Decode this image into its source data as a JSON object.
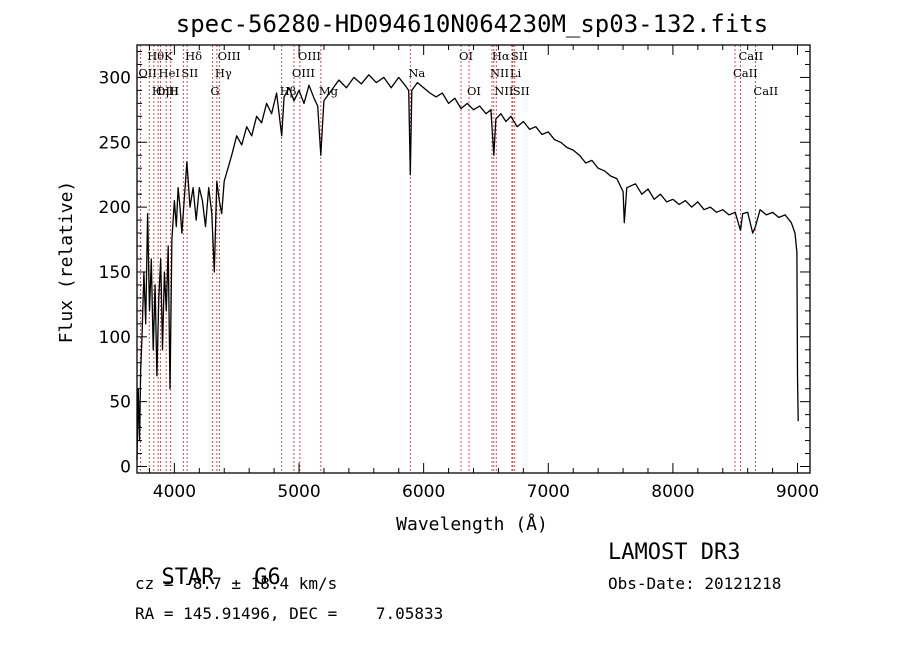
{
  "chart_data": {
    "type": "line",
    "title": "spec-56280-HD094610N064230M_sp03-132.fits",
    "xlabel": "Wavelength (Å)",
    "ylabel": "Flux (relative)",
    "xlim": [
      3700,
      9100
    ],
    "ylim": [
      -5,
      325
    ],
    "xticks": [
      4000,
      5000,
      6000,
      7000,
      8000,
      9000
    ],
    "yticks": [
      0,
      50,
      100,
      150,
      200,
      250,
      300
    ],
    "series": [
      {
        "name": "flux",
        "points": [
          [
            3700,
            5
          ],
          [
            3710,
            60
          ],
          [
            3720,
            20
          ],
          [
            3730,
            75
          ],
          [
            3740,
            100
          ],
          [
            3755,
            150
          ],
          [
            3770,
            110
          ],
          [
            3785,
            195
          ],
          [
            3800,
            120
          ],
          [
            3815,
            160
          ],
          [
            3830,
            90
          ],
          [
            3845,
            140
          ],
          [
            3860,
            70
          ],
          [
            3875,
            130
          ],
          [
            3890,
            160
          ],
          [
            3905,
            90
          ],
          [
            3920,
            150
          ],
          [
            3935,
            120
          ],
          [
            3950,
            170
          ],
          [
            3965,
            60
          ],
          [
            3980,
            175
          ],
          [
            4000,
            205
          ],
          [
            4015,
            185
          ],
          [
            4030,
            215
          ],
          [
            4045,
            200
          ],
          [
            4060,
            180
          ],
          [
            4075,
            200
          ],
          [
            4100,
            235
          ],
          [
            4125,
            200
          ],
          [
            4150,
            215
          ],
          [
            4175,
            190
          ],
          [
            4200,
            215
          ],
          [
            4225,
            205
          ],
          [
            4250,
            185
          ],
          [
            4275,
            215
          ],
          [
            4300,
            195
          ],
          [
            4320,
            150
          ],
          [
            4340,
            220
          ],
          [
            4360,
            205
          ],
          [
            4380,
            195
          ],
          [
            4400,
            220
          ],
          [
            4430,
            230
          ],
          [
            4460,
            240
          ],
          [
            4500,
            255
          ],
          [
            4540,
            248
          ],
          [
            4580,
            262
          ],
          [
            4620,
            255
          ],
          [
            4660,
            270
          ],
          [
            4700,
            265
          ],
          [
            4740,
            280
          ],
          [
            4780,
            272
          ],
          [
            4820,
            288
          ],
          [
            4861,
            255
          ],
          [
            4880,
            285
          ],
          [
            4920,
            292
          ],
          [
            4960,
            282
          ],
          [
            5000,
            290
          ],
          [
            5040,
            280
          ],
          [
            5080,
            294
          ],
          [
            5120,
            284
          ],
          [
            5150,
            278
          ],
          [
            5175,
            240
          ],
          [
            5200,
            282
          ],
          [
            5260,
            290
          ],
          [
            5320,
            298
          ],
          [
            5380,
            292
          ],
          [
            5440,
            300
          ],
          [
            5500,
            295
          ],
          [
            5560,
            302
          ],
          [
            5620,
            296
          ],
          [
            5680,
            300
          ],
          [
            5740,
            292
          ],
          [
            5800,
            300
          ],
          [
            5850,
            294
          ],
          [
            5880,
            290
          ],
          [
            5893,
            225
          ],
          [
            5905,
            290
          ],
          [
            5950,
            296
          ],
          [
            6000,
            292
          ],
          [
            6050,
            288
          ],
          [
            6100,
            285
          ],
          [
            6150,
            288
          ],
          [
            6200,
            280
          ],
          [
            6250,
            284
          ],
          [
            6300,
            276
          ],
          [
            6350,
            280
          ],
          [
            6400,
            275
          ],
          [
            6450,
            278
          ],
          [
            6500,
            272
          ],
          [
            6540,
            275
          ],
          [
            6563,
            240
          ],
          [
            6580,
            268
          ],
          [
            6620,
            272
          ],
          [
            6660,
            266
          ],
          [
            6700,
            270
          ],
          [
            6750,
            262
          ],
          [
            6800,
            266
          ],
          [
            6850,
            260
          ],
          [
            6900,
            262
          ],
          [
            6950,
            256
          ],
          [
            7000,
            258
          ],
          [
            7050,
            252
          ],
          [
            7100,
            250
          ],
          [
            7150,
            246
          ],
          [
            7200,
            244
          ],
          [
            7250,
            240
          ],
          [
            7300,
            234
          ],
          [
            7350,
            236
          ],
          [
            7400,
            230
          ],
          [
            7450,
            228
          ],
          [
            7500,
            224
          ],
          [
            7550,
            222
          ],
          [
            7600,
            212
          ],
          [
            7610,
            188
          ],
          [
            7630,
            215
          ],
          [
            7700,
            218
          ],
          [
            7750,
            210
          ],
          [
            7800,
            214
          ],
          [
            7850,
            206
          ],
          [
            7900,
            210
          ],
          [
            7950,
            204
          ],
          [
            8000,
            206
          ],
          [
            8050,
            202
          ],
          [
            8100,
            205
          ],
          [
            8150,
            200
          ],
          [
            8200,
            204
          ],
          [
            8250,
            198
          ],
          [
            8300,
            200
          ],
          [
            8350,
            196
          ],
          [
            8400,
            198
          ],
          [
            8450,
            194
          ],
          [
            8500,
            196
          ],
          [
            8542,
            182
          ],
          [
            8560,
            195
          ],
          [
            8600,
            196
          ],
          [
            8640,
            180
          ],
          [
            8662,
            185
          ],
          [
            8700,
            198
          ],
          [
            8750,
            194
          ],
          [
            8800,
            196
          ],
          [
            8850,
            192
          ],
          [
            8900,
            194
          ],
          [
            8950,
            188
          ],
          [
            8980,
            180
          ],
          [
            8995,
            165
          ],
          [
            9000,
            70
          ],
          [
            9005,
            35
          ]
        ]
      }
    ],
    "spectral_lines": [
      {
        "label": "Hθ",
        "wavelength": 3798,
        "row": 1
      },
      {
        "label": "OII",
        "wavelength": 3727,
        "row": 2
      },
      {
        "label": "OIII",
        "wavelength": 3869,
        "row": 3
      },
      {
        "label": "K",
        "wavelength": 3934,
        "row": 1
      },
      {
        "label": "HeI",
        "wavelength": 3889,
        "row": 2
      },
      {
        "label": "Hη",
        "wavelength": 3835,
        "row": 3
      },
      {
        "label": "SII",
        "wavelength": 4072,
        "row": 2
      },
      {
        "label": "H",
        "wavelength": 3970,
        "row": 3
      },
      {
        "label": "Hδ",
        "wavelength": 4102,
        "row": 1
      },
      {
        "label": "OIII",
        "wavelength": 4363,
        "row": 1
      },
      {
        "label": "Hγ",
        "wavelength": 4341,
        "row": 2
      },
      {
        "label": "G",
        "wavelength": 4305,
        "row": 3
      },
      {
        "label": "OIII",
        "wavelength": 5007,
        "row": 1
      },
      {
        "label": "OIII",
        "wavelength": 4959,
        "row": 2
      },
      {
        "label": "Hβ",
        "wavelength": 4861,
        "row": 3
      },
      {
        "label": "Mg",
        "wavelength": 5175,
        "row": 3
      },
      {
        "label": "Na",
        "wavelength": 5893,
        "row": 2
      },
      {
        "label": "OI",
        "wavelength": 6300,
        "row": 1
      },
      {
        "label": "OI",
        "wavelength": 6364,
        "row": 3
      },
      {
        "label": "Hα",
        "wavelength": 6563,
        "row": 1
      },
      {
        "label": "NII",
        "wavelength": 6548,
        "row": 2
      },
      {
        "label": "NII",
        "wavelength": 6583,
        "row": 3
      },
      {
        "label": "SII",
        "wavelength": 6716,
        "row": 1
      },
      {
        "label": "Li",
        "wavelength": 6708,
        "row": 2
      },
      {
        "label": "SII",
        "wavelength": 6731,
        "row": 3
      },
      {
        "label": "CaII",
        "wavelength": 8542,
        "row": 1
      },
      {
        "label": "CaII",
        "wavelength": 8498,
        "row": 2
      },
      {
        "label": "CaII",
        "wavelength": 8662,
        "row": 3
      }
    ]
  },
  "info": {
    "class": "STAR",
    "subclass": "G6",
    "cz": "cz = -8.7 ± 18.4 km/s",
    "coords": "RA = 145.91496, DEC =    7.05833",
    "survey": "LAMOST DR3",
    "obs_date": "Obs-Date: 20121218"
  }
}
